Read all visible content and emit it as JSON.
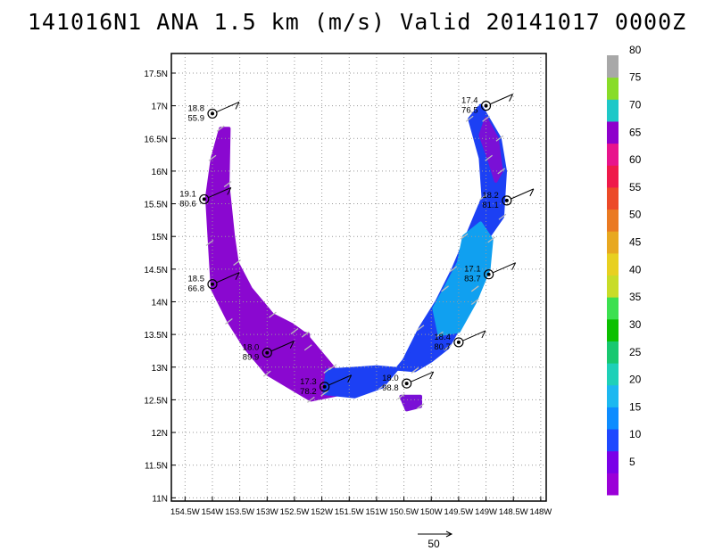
{
  "title": "141016N1 ANA 1.5 km (m/s) Valid 20141017 0000Z",
  "chart_data": {
    "type": "heatmap",
    "title": "141016N1 ANA 1.5 km (m/s) Valid 20141017 0000Z",
    "xlabel": "",
    "ylabel": "",
    "xlim": [
      -154.75,
      -147.9
    ],
    "ylim": [
      10.95,
      17.8
    ],
    "grid": true,
    "x_ticks": [
      {
        "value": -154.5,
        "label": "154.5W"
      },
      {
        "value": -154.0,
        "label": "154W"
      },
      {
        "value": -153.5,
        "label": "153.5W"
      },
      {
        "value": -153.0,
        "label": "153W"
      },
      {
        "value": -152.5,
        "label": "152.5W"
      },
      {
        "value": -152.0,
        "label": "152W"
      },
      {
        "value": -151.5,
        "label": "151.5W"
      },
      {
        "value": -151.0,
        "label": "151W"
      },
      {
        "value": -150.5,
        "label": "150.5W"
      },
      {
        "value": -150.0,
        "label": "150W"
      },
      {
        "value": -149.5,
        "label": "149.5W"
      },
      {
        "value": -149.0,
        "label": "149W"
      },
      {
        "value": -148.5,
        "label": "148.5W"
      },
      {
        "value": -148.0,
        "label": "148W"
      }
    ],
    "y_ticks": [
      {
        "value": 11.0,
        "label": "11N"
      },
      {
        "value": 11.5,
        "label": "11.5N"
      },
      {
        "value": 12.0,
        "label": "12N"
      },
      {
        "value": 12.5,
        "label": "12.5N"
      },
      {
        "value": 13.0,
        "label": "13N"
      },
      {
        "value": 13.5,
        "label": "13.5N"
      },
      {
        "value": 14.0,
        "label": "14N"
      },
      {
        "value": 14.5,
        "label": "14.5N"
      },
      {
        "value": 15.0,
        "label": "15N"
      },
      {
        "value": 15.5,
        "label": "15.5N"
      },
      {
        "value": 16.0,
        "label": "16N"
      },
      {
        "value": 16.5,
        "label": "16.5N"
      },
      {
        "value": 17.0,
        "label": "17N"
      },
      {
        "value": 17.5,
        "label": "17.5N"
      }
    ],
    "colorbar": {
      "labels": [
        "5",
        "10",
        "15",
        "20",
        "25",
        "30",
        "35",
        "40",
        "45",
        "50",
        "55",
        "60",
        "65",
        "70",
        "75",
        "80"
      ],
      "colors": [
        "#9b00d8",
        "#7a00e8",
        "#1f48ff",
        "#0d8cff",
        "#1cb8f0",
        "#1ed0b8",
        "#18c870",
        "#0cc000",
        "#3ce050",
        "#c8dc28",
        "#e8d020",
        "#e8a820",
        "#ea7a22",
        "#ec4a28",
        "#ef1a4a",
        "#e8148c",
        "#8e00cc",
        "#1ec8c8",
        "#88dc28",
        "#a8a8a8"
      ]
    },
    "wind_bands": [
      {
        "color": "#8a08d0",
        "lonlat": [
          [
            -153.85,
            16.65
          ],
          [
            -153.7,
            16.65
          ],
          [
            -153.72,
            15.8
          ],
          [
            -153.62,
            15.0
          ],
          [
            -153.55,
            14.6
          ],
          [
            -153.3,
            14.2
          ],
          [
            -152.9,
            13.8
          ],
          [
            -152.55,
            13.65
          ],
          [
            -152.3,
            13.5
          ],
          [
            -152.05,
            13.25
          ],
          [
            -151.8,
            13.0
          ],
          [
            -151.6,
            12.6
          ],
          [
            -152.2,
            12.5
          ],
          [
            -152.6,
            12.7
          ],
          [
            -153.0,
            12.9
          ],
          [
            -153.4,
            13.3
          ],
          [
            -153.7,
            13.7
          ],
          [
            -154.0,
            14.2
          ],
          [
            -154.05,
            14.9
          ],
          [
            -154.1,
            15.6
          ],
          [
            -154.0,
            16.2
          ]
        ]
      },
      {
        "color": "#1c40f4",
        "lonlat": [
          [
            -151.9,
            12.95
          ],
          [
            -151.0,
            13.0
          ],
          [
            -150.3,
            12.95
          ],
          [
            -150.0,
            13.1
          ],
          [
            -149.7,
            13.3
          ],
          [
            -149.5,
            13.6
          ],
          [
            -149.2,
            14.2
          ],
          [
            -148.95,
            15.0
          ],
          [
            -148.7,
            15.3
          ],
          [
            -148.65,
            16.0
          ],
          [
            -148.75,
            16.5
          ],
          [
            -149.1,
            17.0
          ],
          [
            -149.3,
            16.8
          ],
          [
            -149.1,
            16.2
          ],
          [
            -149.05,
            15.6
          ],
          [
            -149.3,
            15.1
          ],
          [
            -149.6,
            14.5
          ],
          [
            -149.9,
            14.0
          ],
          [
            -150.2,
            13.6
          ],
          [
            -150.5,
            13.1
          ],
          [
            -150.9,
            12.7
          ],
          [
            -151.4,
            12.55
          ],
          [
            -151.95,
            12.6
          ]
        ]
      },
      {
        "color": "#10a0f0",
        "lonlat": [
          [
            -149.85,
            13.5
          ],
          [
            -149.5,
            13.55
          ],
          [
            -149.2,
            14.0
          ],
          [
            -148.95,
            14.5
          ],
          [
            -148.9,
            14.95
          ],
          [
            -149.1,
            15.2
          ],
          [
            -149.4,
            15.0
          ],
          [
            -149.5,
            14.6
          ],
          [
            -149.75,
            14.2
          ],
          [
            -149.95,
            13.9
          ]
        ]
      },
      {
        "color": "#7a10d6",
        "lonlat": [
          [
            -149.0,
            16.8
          ],
          [
            -148.8,
            16.5
          ],
          [
            -148.72,
            16.0
          ],
          [
            -148.82,
            15.85
          ],
          [
            -148.95,
            16.2
          ],
          [
            -149.1,
            16.55
          ]
        ]
      },
      {
        "color": "#7a10d6",
        "lonlat": [
          [
            -150.55,
            12.55
          ],
          [
            -150.2,
            12.55
          ],
          [
            -150.2,
            12.4
          ],
          [
            -150.45,
            12.35
          ]
        ]
      },
      {
        "color": "#8a08d0",
        "lonlat": [
          [
            -152.5,
            13.55
          ],
          [
            -152.25,
            13.5
          ],
          [
            -152.25,
            13.3
          ],
          [
            -152.5,
            13.35
          ]
        ]
      }
    ],
    "points": [
      {
        "lon": -154.0,
        "lat": 16.88,
        "vmax": "18.8",
        "rmw": "55.9"
      },
      {
        "lon": -154.15,
        "lat": 15.57,
        "vmax": "19.1",
        "rmw": "80.6"
      },
      {
        "lon": -154.0,
        "lat": 14.27,
        "vmax": "18.5",
        "rmw": "66.8"
      },
      {
        "lon": -153.0,
        "lat": 13.22,
        "vmax": "18.0",
        "rmw": "89.9"
      },
      {
        "lon": -151.95,
        "lat": 12.7,
        "vmax": "17.3",
        "rmw": "78.2"
      },
      {
        "lon": -150.45,
        "lat": 12.75,
        "vmax": "18.0",
        "rmw": "98.8"
      },
      {
        "lon": -149.5,
        "lat": 13.38,
        "vmax": "18.4",
        "rmw": "80.7"
      },
      {
        "lon": -148.95,
        "lat": 14.42,
        "vmax": "17.1",
        "rmw": "83.7"
      },
      {
        "lon": -148.62,
        "lat": 15.55,
        "vmax": "18.2",
        "rmw": "81.1"
      },
      {
        "lon": -149.0,
        "lat": 17.0,
        "vmax": "17.4",
        "rmw": "76.5"
      }
    ],
    "vector_scale": "50"
  }
}
